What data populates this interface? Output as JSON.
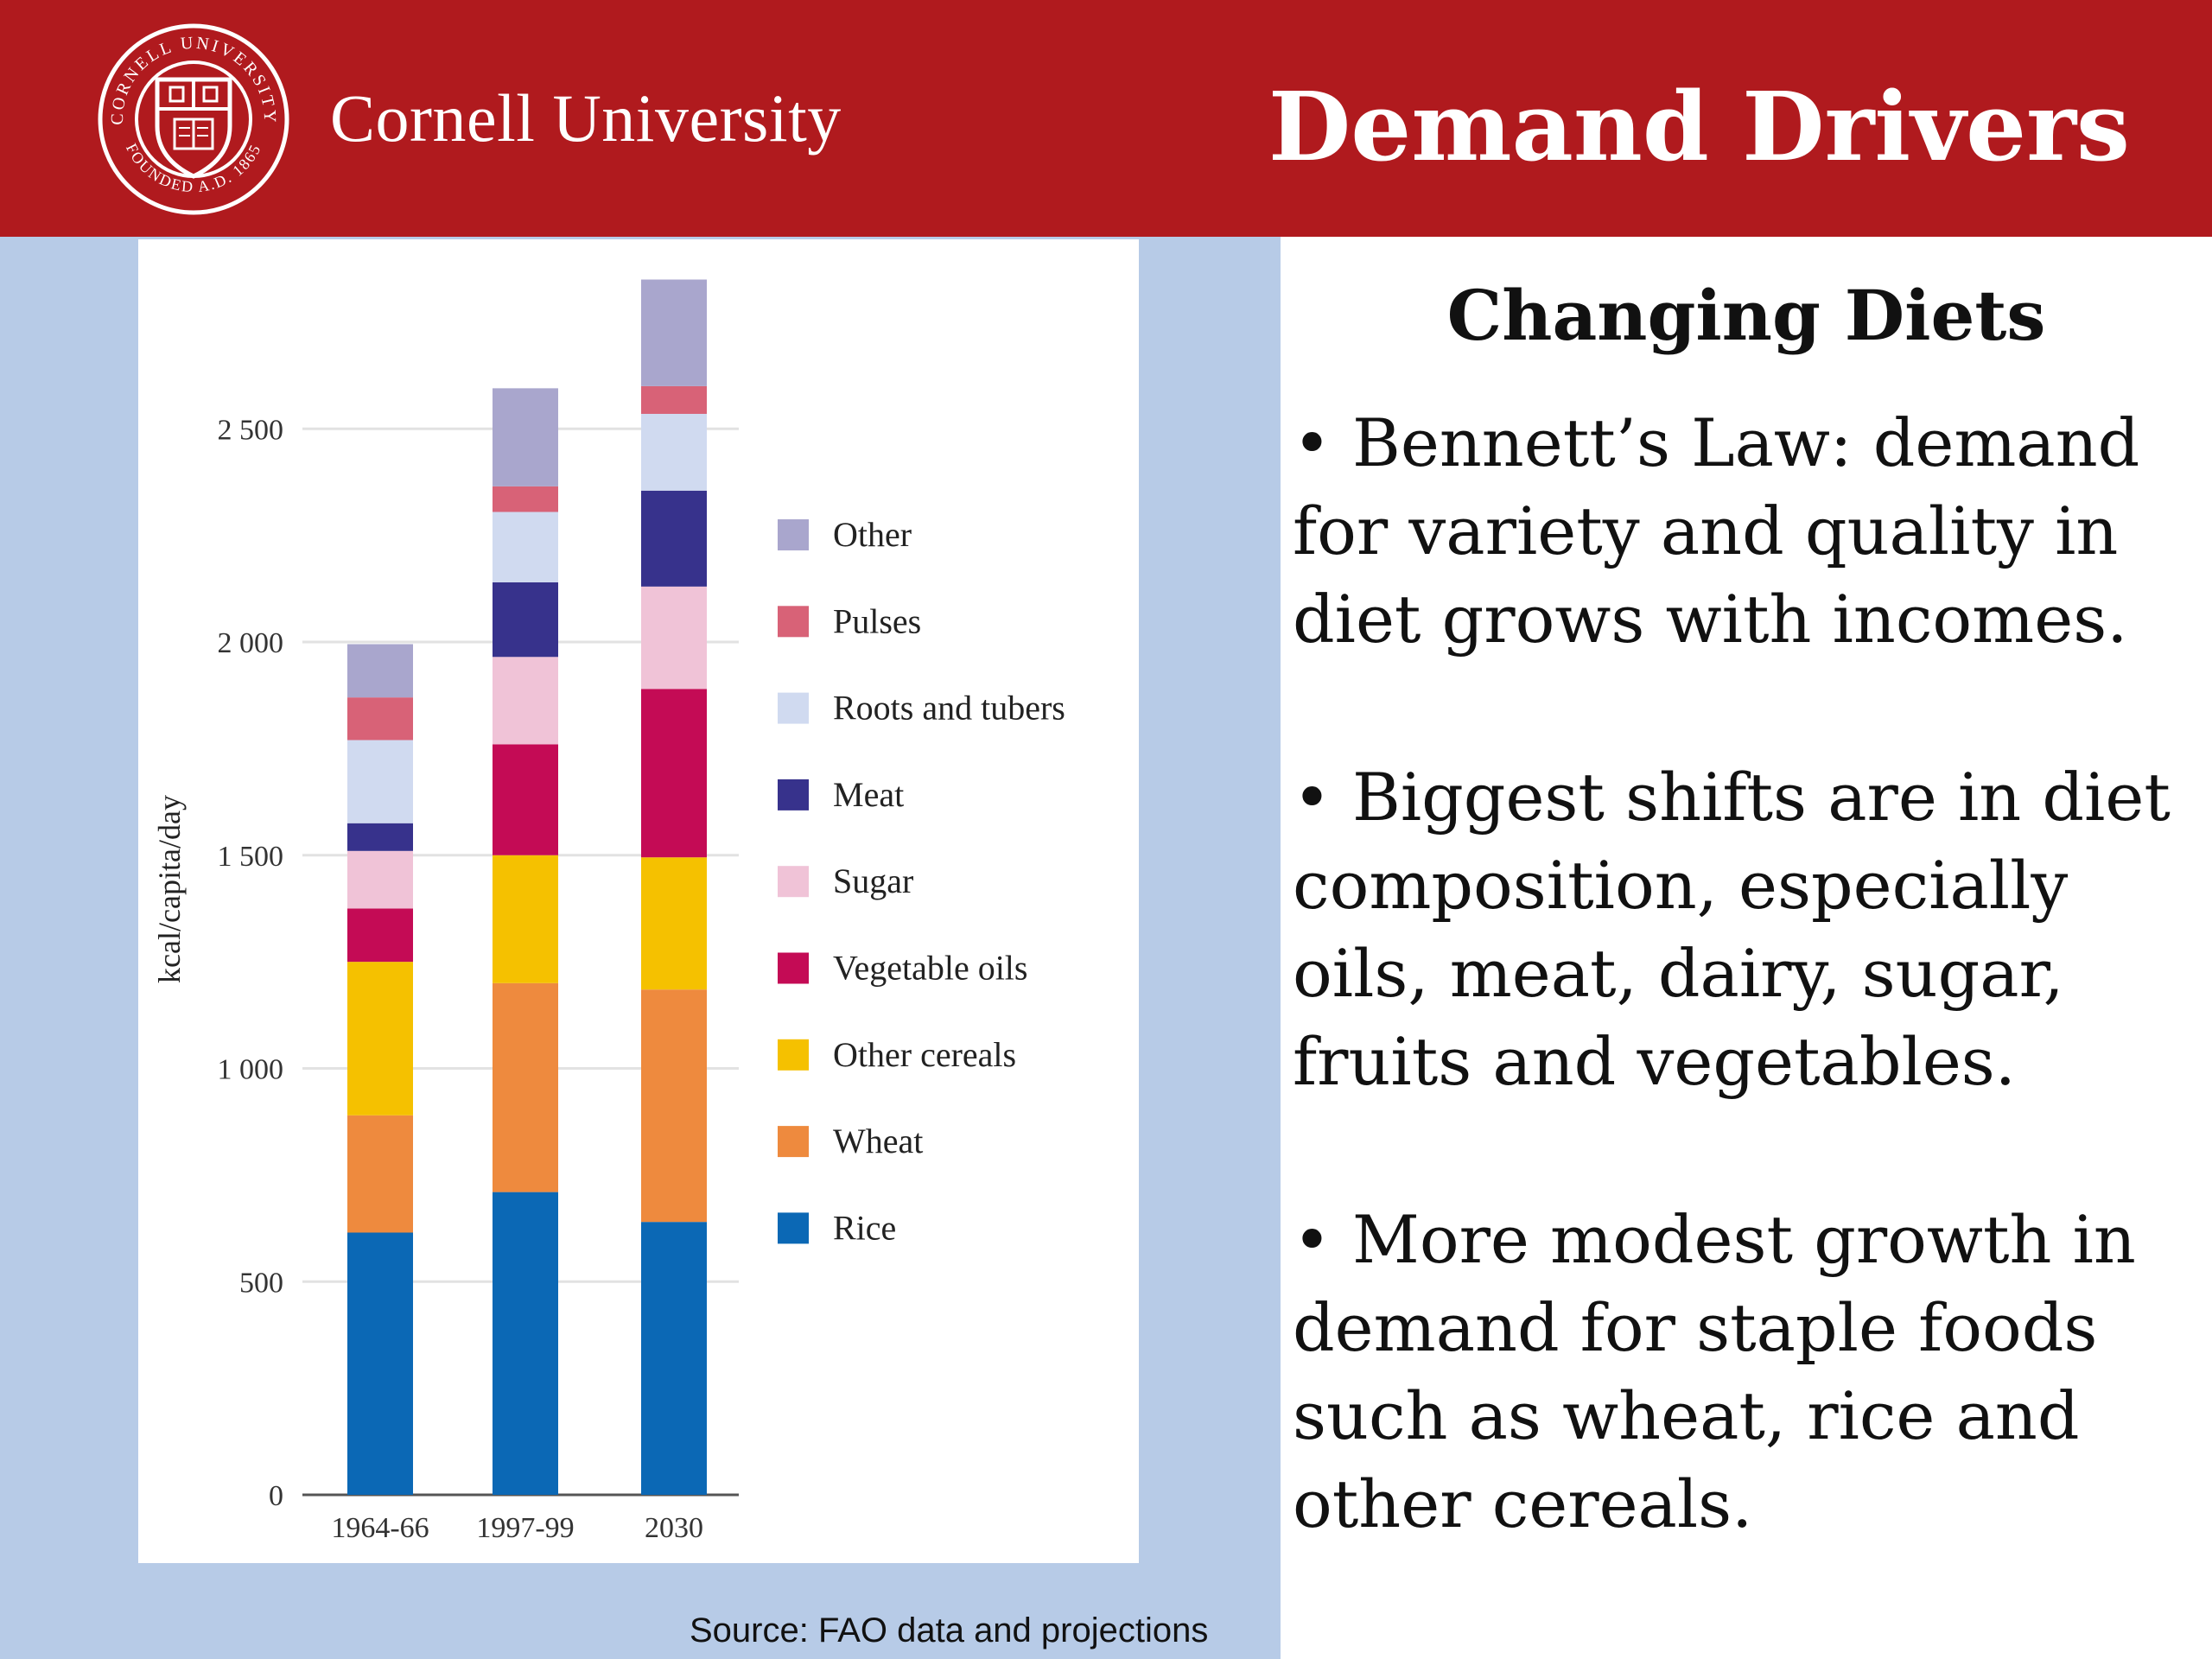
{
  "header": {
    "university": "Cornell University",
    "title": "Demand Drivers",
    "seal_text_top": "CORNELL UNIVERSITY",
    "seal_text_bottom": "FOUNDED A.D. 1865",
    "header_color": "#b01a1e"
  },
  "right": {
    "title": "Changing Diets",
    "bullets": [
      "Bennett’s Law: demand for variety and quality in diet grows with incomes.",
      "Biggest shifts are in diet composition, especially oils, meat, dairy, sugar, fruits and vegetables.",
      "More modest growth in demand for staple foods such as wheat, rice and other cereals."
    ]
  },
  "source": "Source: FAO data and projections",
  "chart_data": {
    "type": "bar",
    "stacked": true,
    "ylabel": "kcal/capita/day",
    "ylim": [
      0,
      2850
    ],
    "yticks": [
      0,
      500,
      1000,
      1500,
      2000,
      2500
    ],
    "ytick_labels": [
      "0",
      "500",
      "1 000",
      "1 500",
      "2 000",
      "2 500"
    ],
    "grid": true,
    "legend_position": "right",
    "categories": [
      "1964-66",
      "1997-99",
      "2030"
    ],
    "series": [
      {
        "name": "Rice",
        "color": "#0b68b5",
        "values": [
          615,
          710,
          640
        ]
      },
      {
        "name": "Wheat",
        "color": "#ee8a3e",
        "values": [
          275,
          490,
          545
        ]
      },
      {
        "name": "Other cereals",
        "color": "#f5c100",
        "values": [
          360,
          300,
          310
        ]
      },
      {
        "name": "Vegetable oils",
        "color": "#c40b55",
        "values": [
          125,
          260,
          395
        ]
      },
      {
        "name": "Sugar",
        "color": "#f0c3d7",
        "values": [
          135,
          205,
          240
        ]
      },
      {
        "name": "Meat",
        "color": "#37328c",
        "values": [
          65,
          175,
          225
        ]
      },
      {
        "name": "Roots and tubers",
        "color": "#d0daf0",
        "values": [
          195,
          165,
          180
        ]
      },
      {
        "name": "Pulses",
        "color": "#d86277",
        "values": [
          100,
          60,
          65
        ]
      },
      {
        "name": "Other",
        "color": "#a9a6cd",
        "values": [
          125,
          230,
          250
        ]
      }
    ]
  }
}
